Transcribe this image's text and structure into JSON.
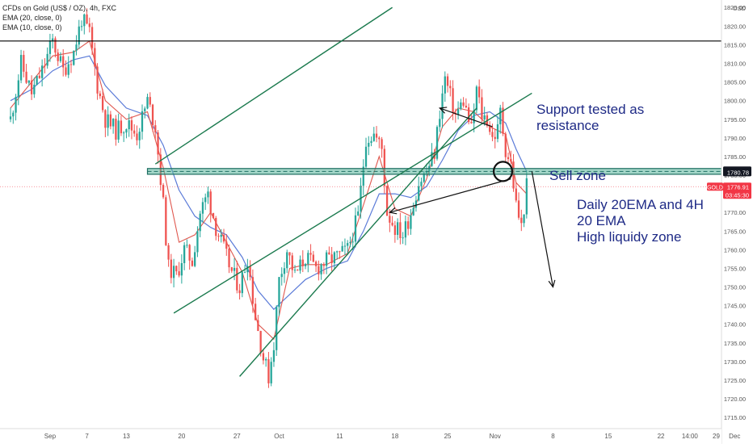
{
  "legend": {
    "symbol": "CFDs on Gold (US$ / OZ), 4h, FXC",
    "ema20": "EMA (20, close, 0)",
    "ema10": "EMA (10, close, 0)"
  },
  "currency": "USD",
  "annotations": {
    "support_resistance": [
      "Support tested as",
      "resistance"
    ],
    "sell_zone": "Sell zone",
    "liquidity": [
      "Daily 20EMA and 4H",
      "20 EMA",
      "High liquidy zone"
    ]
  },
  "colors": {
    "background": "#ffffff",
    "bull": "#26a69a",
    "bear": "#ef5350",
    "ema20": "#5b7bd8",
    "ema10": "#e0584f",
    "channel": "#1b7a4e",
    "zone_fill": "#57b59a",
    "zone_edge": "#1f6f63",
    "annotation_text": "#1e2a86",
    "arrow": "#111111",
    "price_badge": "#f23645",
    "level_badge": "#131722",
    "axis_text": "#555555"
  },
  "chart_data": {
    "type": "candlestick",
    "symbol": "GOLD",
    "timeframe": "4h",
    "y_axis": {
      "ylim": [
        1712,
        1827
      ],
      "ticks": [
        1715,
        1720,
        1725,
        1730,
        1735,
        1740,
        1745,
        1750,
        1755,
        1760,
        1765,
        1770,
        1775,
        1780,
        1785,
        1790,
        1795,
        1800,
        1805,
        1810,
        1815,
        1820,
        1825
      ]
    },
    "x_axis": {
      "bars_range": [
        -6,
        268
      ],
      "ticks": [
        {
          "label": "Sep",
          "bar": 13
        },
        {
          "label": "7",
          "bar": 27
        },
        {
          "label": "13",
          "bar": 42
        },
        {
          "label": "20",
          "bar": 63
        },
        {
          "label": "27",
          "bar": 84
        },
        {
          "label": "Oct",
          "bar": 100
        },
        {
          "label": "11",
          "bar": 123
        },
        {
          "label": "18",
          "bar": 144
        },
        {
          "label": "25",
          "bar": 164
        },
        {
          "label": "Nov",
          "bar": 182
        },
        {
          "label": "8",
          "bar": 204
        },
        {
          "label": "15",
          "bar": 225
        },
        {
          "label": "22",
          "bar": 245
        },
        {
          "label": "29",
          "bar": 266
        },
        {
          "label": "14:00",
          "bar": 256
        },
        {
          "label": "Dec",
          "bar": 273
        }
      ]
    },
    "grid": false,
    "close_path": [
      [
        -2,
        1795
      ],
      [
        2,
        1810
      ],
      [
        6,
        1802
      ],
      [
        10,
        1808
      ],
      [
        14,
        1816
      ],
      [
        18,
        1808
      ],
      [
        22,
        1813
      ],
      [
        25,
        1822
      ],
      [
        28,
        1818
      ],
      [
        31,
        1804
      ],
      [
        34,
        1795
      ],
      [
        38,
        1792
      ],
      [
        42,
        1794
      ],
      [
        46,
        1791
      ],
      [
        50,
        1800
      ],
      [
        53,
        1793
      ],
      [
        56,
        1772
      ],
      [
        58,
        1755
      ],
      [
        61,
        1753
      ],
      [
        64,
        1760
      ],
      [
        67,
        1757
      ],
      [
        70,
        1770
      ],
      [
        73,
        1775
      ],
      [
        76,
        1766
      ],
      [
        79,
        1760
      ],
      [
        82,
        1754
      ],
      [
        85,
        1750
      ],
      [
        88,
        1758
      ],
      [
        91,
        1742
      ],
      [
        94,
        1731
      ],
      [
        96,
        1726
      ],
      [
        98,
        1735
      ],
      [
        100,
        1752
      ],
      [
        103,
        1760
      ],
      [
        106,
        1753
      ],
      [
        110,
        1758
      ],
      [
        114,
        1755
      ],
      [
        118,
        1757
      ],
      [
        122,
        1758
      ],
      [
        126,
        1760
      ],
      [
        130,
        1769
      ],
      [
        133,
        1790
      ],
      [
        136,
        1791
      ],
      [
        139,
        1787
      ],
      [
        141,
        1770
      ],
      [
        144,
        1766
      ],
      [
        147,
        1764
      ],
      [
        150,
        1770
      ],
      [
        153,
        1778
      ],
      [
        156,
        1781
      ],
      [
        159,
        1786
      ],
      [
        161,
        1797
      ],
      [
        163,
        1806
      ],
      [
        165,
        1801
      ],
      [
        167,
        1796
      ],
      [
        170,
        1800
      ],
      [
        173,
        1792
      ],
      [
        175,
        1803
      ],
      [
        177,
        1796
      ],
      [
        179,
        1795
      ],
      [
        181,
        1790
      ],
      [
        183,
        1792
      ],
      [
        184,
        1797
      ],
      [
        186,
        1787
      ],
      [
        188,
        1783
      ],
      [
        190,
        1772
      ],
      [
        192,
        1766
      ],
      [
        194,
        1777
      ]
    ],
    "ema20_path": [
      [
        -2,
        1800
      ],
      [
        6,
        1803
      ],
      [
        14,
        1808
      ],
      [
        22,
        1811
      ],
      [
        28,
        1812
      ],
      [
        34,
        1804
      ],
      [
        42,
        1798
      ],
      [
        50,
        1796
      ],
      [
        56,
        1788
      ],
      [
        62,
        1776
      ],
      [
        68,
        1769
      ],
      [
        74,
        1766
      ],
      [
        80,
        1764
      ],
      [
        86,
        1758
      ],
      [
        92,
        1749
      ],
      [
        98,
        1744
      ],
      [
        104,
        1748
      ],
      [
        110,
        1752
      ],
      [
        118,
        1755
      ],
      [
        126,
        1757
      ],
      [
        132,
        1765
      ],
      [
        138,
        1775
      ],
      [
        144,
        1775
      ],
      [
        150,
        1774
      ],
      [
        156,
        1777
      ],
      [
        162,
        1784
      ],
      [
        168,
        1792
      ],
      [
        174,
        1796
      ],
      [
        180,
        1797
      ],
      [
        186,
        1794
      ],
      [
        190,
        1787
      ],
      [
        194,
        1781
      ]
    ],
    "ema10_path": [
      [
        -2,
        1798
      ],
      [
        6,
        1805
      ],
      [
        14,
        1812
      ],
      [
        22,
        1813
      ],
      [
        28,
        1816
      ],
      [
        34,
        1800
      ],
      [
        42,
        1795
      ],
      [
        50,
        1797
      ],
      [
        56,
        1782
      ],
      [
        62,
        1762
      ],
      [
        68,
        1764
      ],
      [
        74,
        1770
      ],
      [
        80,
        1762
      ],
      [
        86,
        1754
      ],
      [
        92,
        1740
      ],
      [
        98,
        1736
      ],
      [
        104,
        1755
      ],
      [
        110,
        1756
      ],
      [
        118,
        1756
      ],
      [
        126,
        1759
      ],
      [
        132,
        1772
      ],
      [
        138,
        1785
      ],
      [
        144,
        1771
      ],
      [
        150,
        1769
      ],
      [
        156,
        1779
      ],
      [
        162,
        1793
      ],
      [
        168,
        1798
      ],
      [
        174,
        1797
      ],
      [
        180,
        1793
      ],
      [
        186,
        1791
      ],
      [
        190,
        1778
      ],
      [
        194,
        1775
      ]
    ],
    "horizontal_lines": [
      {
        "name": "resistance",
        "value": 1816
      }
    ],
    "price_marker": {
      "value": 1776.91,
      "label": "GOLD",
      "countdown": "03:45:30"
    },
    "zone": {
      "top": 1781.25,
      "bottom": 1780.78
    },
    "channel": {
      "upper": [
        [
          53,
          1783
        ],
        [
          143,
          1825
        ]
      ],
      "lower_top": [
        [
          60,
          1743
        ],
        [
          196,
          1802
        ]
      ],
      "lower_bottom": [
        [
          85,
          1726
        ],
        [
          175,
          1798
        ]
      ]
    },
    "arrows": [
      {
        "from": [
          181,
          1793
        ],
        "to": [
          161,
          1798
        ]
      },
      {
        "from": [
          188,
          1779
        ],
        "to": [
          142,
          1770
        ]
      },
      {
        "from": [
          196,
          1781
        ],
        "to": [
          204,
          1750
        ]
      }
    ],
    "ellipse": {
      "center": [
        185,
        1781
      ],
      "radius_bars": 3.5,
      "radius_value": 2.6
    }
  }
}
